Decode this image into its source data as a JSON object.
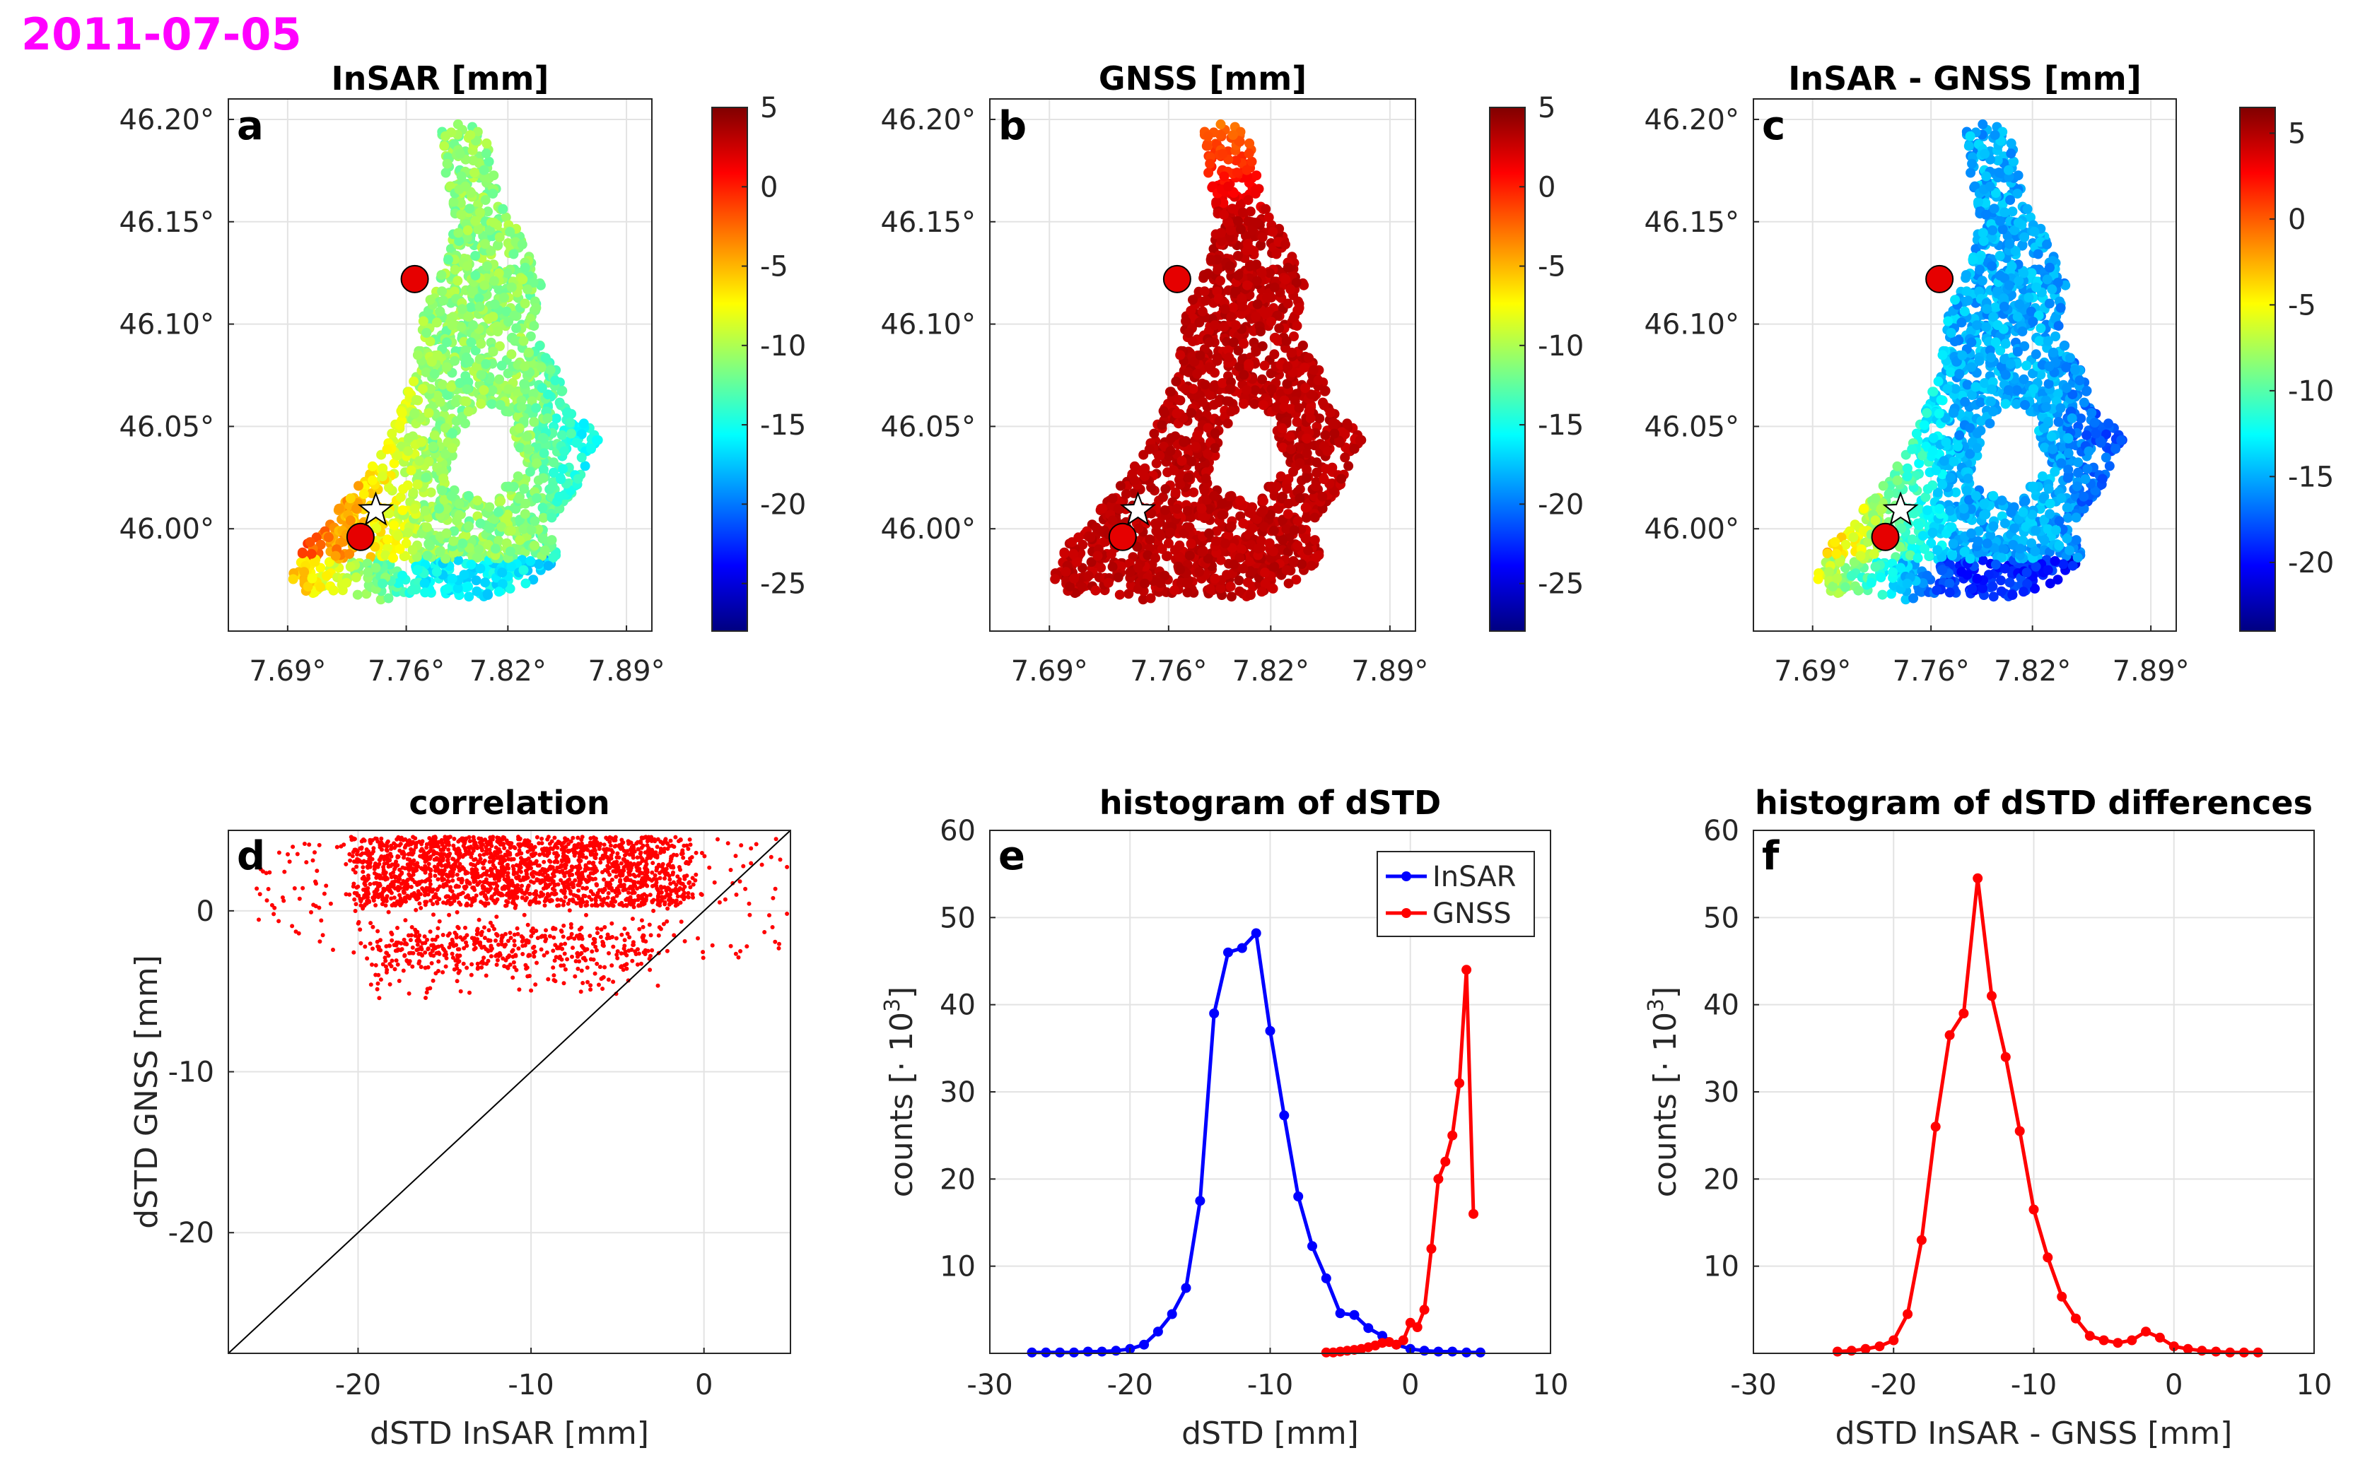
{
  "date_label": "2011-07-05",
  "colors": {
    "date": "#ff00ff",
    "insar_series": "#0000ff",
    "gnss_series": "#ff0000",
    "marker": "#e60000",
    "grid": "#e3e3e3",
    "axis": "#262626"
  },
  "icons": {
    "gnss_station": "circle-marker",
    "reference_point": "star-marker"
  },
  "chart_data": [
    {
      "panel": "a",
      "type": "heatmap",
      "title": "InSAR [mm]",
      "xlabel": "",
      "ylabel": "",
      "x_ticks": [
        "7.69°",
        "7.76°",
        "7.82°",
        "7.89°"
      ],
      "y_ticks": [
        "46.20°",
        "46.15°",
        "46.10°",
        "46.05°",
        "46.00°"
      ],
      "colorbar": {
        "ticks": [
          "5",
          "0",
          "-5",
          "-10",
          "-15",
          "-20",
          "-25"
        ],
        "range": [
          -28,
          5
        ]
      },
      "markers": [
        {
          "kind": "gnss_station",
          "lon": 7.765,
          "lat": 46.122
        },
        {
          "kind": "gnss_station",
          "lon": 7.733,
          "lat": 45.996
        },
        {
          "kind": "reference_point",
          "lon": 7.742,
          "lat": 46.009
        }
      ]
    },
    {
      "panel": "b",
      "type": "heatmap",
      "title": "GNSS [mm]",
      "xlabel": "",
      "ylabel": "",
      "x_ticks": [
        "7.69°",
        "7.76°",
        "7.82°",
        "7.89°"
      ],
      "y_ticks": [
        "46.20°",
        "46.15°",
        "46.10°",
        "46.05°",
        "46.00°"
      ],
      "colorbar": {
        "ticks": [
          "5",
          "0",
          "-5",
          "-10",
          "-15",
          "-20",
          "-25"
        ],
        "range": [
          -28,
          5
        ]
      },
      "markers": [
        {
          "kind": "gnss_station",
          "lon": 7.765,
          "lat": 46.122
        },
        {
          "kind": "gnss_station",
          "lon": 7.733,
          "lat": 45.996
        },
        {
          "kind": "reference_point",
          "lon": 7.742,
          "lat": 46.009
        }
      ]
    },
    {
      "panel": "c",
      "type": "heatmap",
      "title": "InSAR - GNSS [mm]",
      "xlabel": "",
      "ylabel": "",
      "x_ticks": [
        "7.69°",
        "7.76°",
        "7.82°",
        "7.89°"
      ],
      "y_ticks": [
        "46.20°",
        "46.15°",
        "46.10°",
        "46.05°",
        "46.00°"
      ],
      "colorbar": {
        "ticks": [
          "5",
          "0",
          "-5",
          "-10",
          "-15",
          "-20"
        ],
        "range": [
          -24,
          6.5
        ]
      },
      "markers": [
        {
          "kind": "gnss_station",
          "lon": 7.765,
          "lat": 46.122
        },
        {
          "kind": "gnss_station",
          "lon": 7.733,
          "lat": 45.996
        },
        {
          "kind": "reference_point",
          "lon": 7.742,
          "lat": 46.009
        }
      ]
    },
    {
      "panel": "d",
      "type": "scatter",
      "title": "correlation",
      "xlabel": "dSTD InSAR [mm]",
      "ylabel": "dSTD GNSS [mm]",
      "xlim": [
        -27.5,
        5
      ],
      "ylim": [
        -27.5,
        5
      ],
      "x_ticks": [
        -20,
        -10,
        0
      ],
      "y_ticks": [
        0,
        -10,
        -20
      ],
      "reference_line": "y = x",
      "point_cloud": {
        "x_range": [
          -27,
          5
        ],
        "y_range": [
          -6,
          4.8
        ],
        "dense_core_x": [
          -20,
          -1
        ],
        "dense_core_y": [
          0,
          4.5
        ]
      }
    },
    {
      "panel": "e",
      "type": "line",
      "title": "histogram of dSTD",
      "xlabel": "dSTD [mm]",
      "ylabel_prefix": "counts [· 10",
      "ylabel_exp": "3",
      "ylabel_suffix": "]",
      "xlim": [
        -30,
        10
      ],
      "ylim": [
        0,
        60
      ],
      "x_ticks": [
        -30,
        -20,
        -10,
        0,
        10
      ],
      "y_ticks": [
        10,
        20,
        30,
        40,
        50,
        60
      ],
      "legend": "top-right",
      "series": [
        {
          "name": "InSAR",
          "x": [
            -27,
            -26,
            -25,
            -24,
            -23,
            -22,
            -21,
            -20,
            -19,
            -18,
            -17,
            -16,
            -15,
            -14,
            -13,
            -12,
            -11,
            -10,
            -9,
            -8,
            -7,
            -6,
            -5,
            -4,
            -3,
            -2,
            -1,
            0,
            1,
            2,
            3,
            4,
            5
          ],
          "y": [
            0.1,
            0.1,
            0.1,
            0.1,
            0.2,
            0.2,
            0.3,
            0.5,
            1.0,
            2.5,
            4.5,
            7.5,
            17.5,
            39,
            46,
            46.5,
            48.2,
            37,
            27.3,
            18,
            12.3,
            8.6,
            4.6,
            4.4,
            2.9,
            2.0,
            1.0,
            0.5,
            0.3,
            0.2,
            0.2,
            0.1,
            0.1
          ]
        },
        {
          "name": "GNSS",
          "x": [
            -6,
            -5.5,
            -5,
            -4.5,
            -4,
            -3.5,
            -3,
            -2.5,
            -2,
            -1.5,
            -1,
            -0.5,
            0,
            0.5,
            1,
            1.5,
            2,
            2.5,
            3,
            3.5,
            4,
            4.5
          ],
          "y": [
            0.1,
            0.1,
            0.2,
            0.3,
            0.4,
            0.5,
            0.7,
            0.9,
            1.2,
            1.3,
            1.0,
            1.5,
            3.5,
            3.0,
            5.0,
            12,
            20,
            22,
            25,
            31,
            44,
            16
          ]
        }
      ]
    },
    {
      "panel": "f",
      "type": "line",
      "title": "histogram of dSTD differences",
      "xlabel": "dSTD InSAR - GNSS [mm]",
      "ylabel_prefix": "counts [· 10",
      "ylabel_exp": "3",
      "ylabel_suffix": "]",
      "xlim": [
        -30,
        10
      ],
      "ylim": [
        0,
        60
      ],
      "x_ticks": [
        -30,
        -20,
        -10,
        0,
        10
      ],
      "y_ticks": [
        10,
        20,
        30,
        40,
        50,
        60
      ],
      "series": [
        {
          "name": "InSAR - GNSS",
          "x": [
            -24,
            -23,
            -22,
            -21,
            -20,
            -19,
            -18,
            -17,
            -16,
            -15,
            -14,
            -13,
            -12,
            -11,
            -10,
            -9,
            -8,
            -7,
            -6,
            -5,
            -4,
            -3,
            -2,
            -1,
            0,
            1,
            2,
            3,
            4,
            5,
            6
          ],
          "y": [
            0.2,
            0.3,
            0.5,
            0.8,
            1.5,
            4.5,
            13,
            26,
            36.5,
            39,
            54.5,
            41,
            34,
            25.5,
            16.5,
            11,
            6.5,
            4.0,
            2.0,
            1.5,
            1.2,
            1.5,
            2.5,
            1.8,
            0.8,
            0.5,
            0.3,
            0.2,
            0.1,
            0.1,
            0.1
          ]
        }
      ]
    }
  ]
}
